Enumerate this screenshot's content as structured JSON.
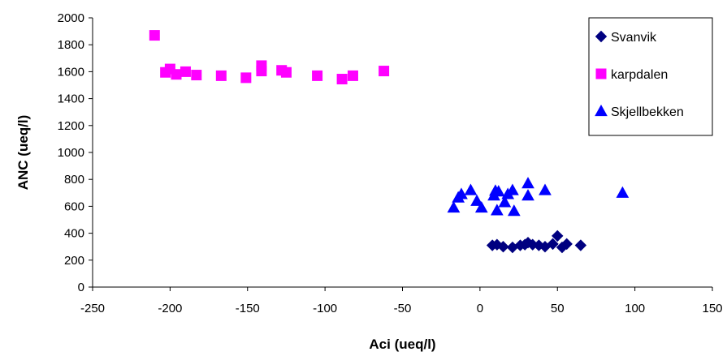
{
  "chart_data": {
    "type": "scatter",
    "xlabel": "Aci (ueq/l)",
    "ylabel": "ANC (ueq/l)",
    "xlim": [
      -250,
      150
    ],
    "ylim": [
      0,
      2000
    ],
    "xticks": [
      -250,
      -200,
      -150,
      -100,
      -50,
      0,
      50,
      100,
      150
    ],
    "yticks": [
      0,
      200,
      400,
      600,
      800,
      1000,
      1200,
      1400,
      1600,
      1800,
      2000
    ],
    "grid": false,
    "legend_position": "top-right",
    "series": [
      {
        "name": "Svanvik",
        "marker": "diamond",
        "color": "#000080",
        "points": [
          [
            8,
            310
          ],
          [
            11,
            315
          ],
          [
            15,
            300
          ],
          [
            21,
            295
          ],
          [
            26,
            310
          ],
          [
            29,
            315
          ],
          [
            31,
            330
          ],
          [
            34,
            315
          ],
          [
            38,
            310
          ],
          [
            42,
            300
          ],
          [
            47,
            320
          ],
          [
            50,
            380
          ],
          [
            53,
            295
          ],
          [
            56,
            320
          ],
          [
            65,
            310
          ]
        ]
      },
      {
        "name": "karpdalen",
        "marker": "square",
        "color": "#ff00ff",
        "points": [
          [
            -210,
            1870
          ],
          [
            -203,
            1595
          ],
          [
            -200,
            1620
          ],
          [
            -196,
            1580
          ],
          [
            -190,
            1600
          ],
          [
            -183,
            1575
          ],
          [
            -167,
            1570
          ],
          [
            -151,
            1555
          ],
          [
            -141,
            1645
          ],
          [
            -141,
            1605
          ],
          [
            -128,
            1610
          ],
          [
            -125,
            1595
          ],
          [
            -105,
            1570
          ],
          [
            -89,
            1545
          ],
          [
            -82,
            1570
          ],
          [
            -62,
            1605
          ]
        ]
      },
      {
        "name": "Skjellbekken",
        "marker": "triangle",
        "color": "#0000ff",
        "points": [
          [
            -17,
            590
          ],
          [
            -14,
            665
          ],
          [
            -12,
            690
          ],
          [
            -6,
            720
          ],
          [
            -2,
            640
          ],
          [
            1,
            590
          ],
          [
            9,
            680
          ],
          [
            10,
            715
          ],
          [
            11,
            570
          ],
          [
            12,
            710
          ],
          [
            16,
            630
          ],
          [
            18,
            690
          ],
          [
            21,
            720
          ],
          [
            22,
            565
          ],
          [
            31,
            680
          ],
          [
            31,
            770
          ],
          [
            42,
            720
          ],
          [
            92,
            700
          ]
        ]
      }
    ]
  }
}
